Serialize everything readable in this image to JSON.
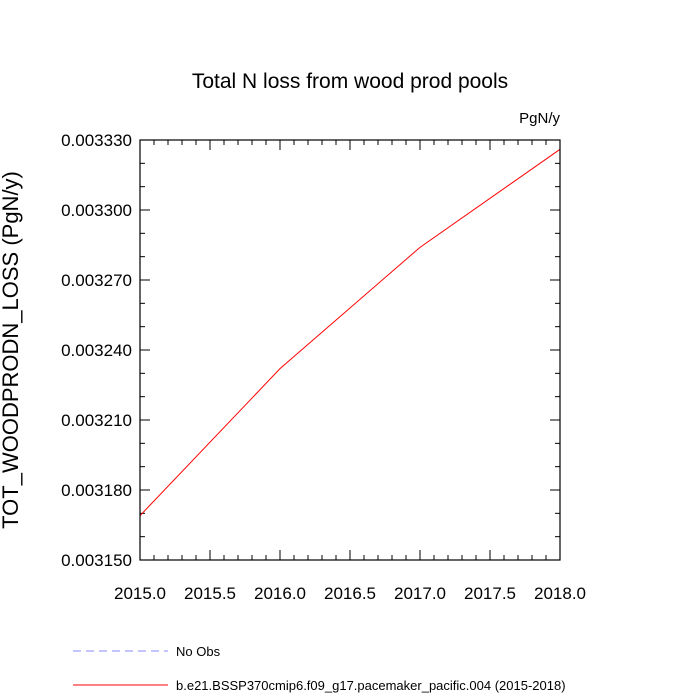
{
  "chart_data": {
    "type": "line",
    "title": "Total N loss from wood prod pools",
    "units": "PgN/y",
    "xlabel": "",
    "ylabel": "TOT_WOODPRODN_LOSS  (PgN/y)",
    "xlim": [
      2015.0,
      2018.0
    ],
    "ylim": [
      0.00315,
      0.00333
    ],
    "x_ticks": [
      "2015.0",
      "2015.5",
      "2016.0",
      "2016.5",
      "2017.0",
      "2017.5",
      "2018.0"
    ],
    "x_tick_values": [
      2015.0,
      2015.5,
      2016.0,
      2016.5,
      2017.0,
      2017.5,
      2018.0
    ],
    "y_ticks": [
      "0.003150",
      "0.003180",
      "0.003210",
      "0.003240",
      "0.003270",
      "0.003300",
      "0.003330"
    ],
    "y_tick_values": [
      0.00315,
      0.00318,
      0.00321,
      0.00324,
      0.00327,
      0.0033,
      0.00333
    ],
    "grid": false,
    "legend_position": "bottom",
    "series": [
      {
        "name": "No Obs",
        "color": "#8888ff",
        "style": "dashed",
        "x": [],
        "y": []
      },
      {
        "name": "b.e21.BSSP370cmip6.f09_g17.pacemaker_pacific.004 (2015-2018)",
        "color": "#ff0000",
        "style": "solid",
        "x": [
          2015.0,
          2016.0,
          2017.0,
          2018.0
        ],
        "y": [
          0.003169,
          0.003232,
          0.003284,
          0.003326
        ]
      }
    ]
  }
}
